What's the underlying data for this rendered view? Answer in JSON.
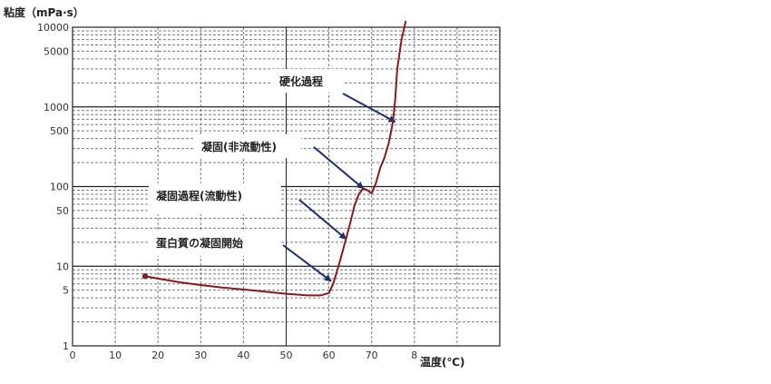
{
  "chart_data": {
    "type": "line",
    "title": "",
    "ylabel": "粘度（mPa·s）",
    "xlabel": "温度(℃)",
    "x_ticks": [
      "0",
      "10",
      "20",
      "30",
      "40",
      "50",
      "60",
      "70",
      "8"
    ],
    "y_ticks": [
      "1",
      "5",
      "10",
      "50",
      "100",
      "500",
      "1000",
      "5000",
      "10000"
    ],
    "y_scale": "log",
    "xlim": [
      0,
      100
    ],
    "ylim": [
      1,
      10000
    ],
    "grid": true,
    "series": [
      {
        "color": "#8b1a1a",
        "x": [
          17,
          20,
          25,
          30,
          35,
          40,
          45,
          50,
          55,
          58,
          60,
          61,
          62,
          63,
          64,
          65,
          66,
          67,
          68,
          69,
          70,
          71,
          72,
          73,
          74,
          75,
          75.5,
          76,
          77,
          78
        ],
        "y": [
          7.5,
          7.0,
          6.3,
          5.8,
          5.4,
          5.1,
          4.8,
          4.5,
          4.3,
          4.3,
          4.6,
          6.0,
          9.0,
          14,
          22,
          35,
          58,
          80,
          95,
          90,
          82,
          110,
          170,
          230,
          350,
          650,
          1200,
          3000,
          7000,
          12000
        ]
      }
    ],
    "marker": {
      "x": 17,
      "y": 7.5
    },
    "annotations": [
      {
        "text": "硬化過程",
        "ax": 75.5,
        "ay": 650
      },
      {
        "text": "凝固(非流動性)",
        "ax": 68,
        "ay": 95
      },
      {
        "text": "凝固過程(流動性)",
        "ax": 64,
        "ay": 22
      },
      {
        "text": "蛋白質の凝固開始",
        "ax": 60.5,
        "ay": 6.5
      }
    ]
  }
}
